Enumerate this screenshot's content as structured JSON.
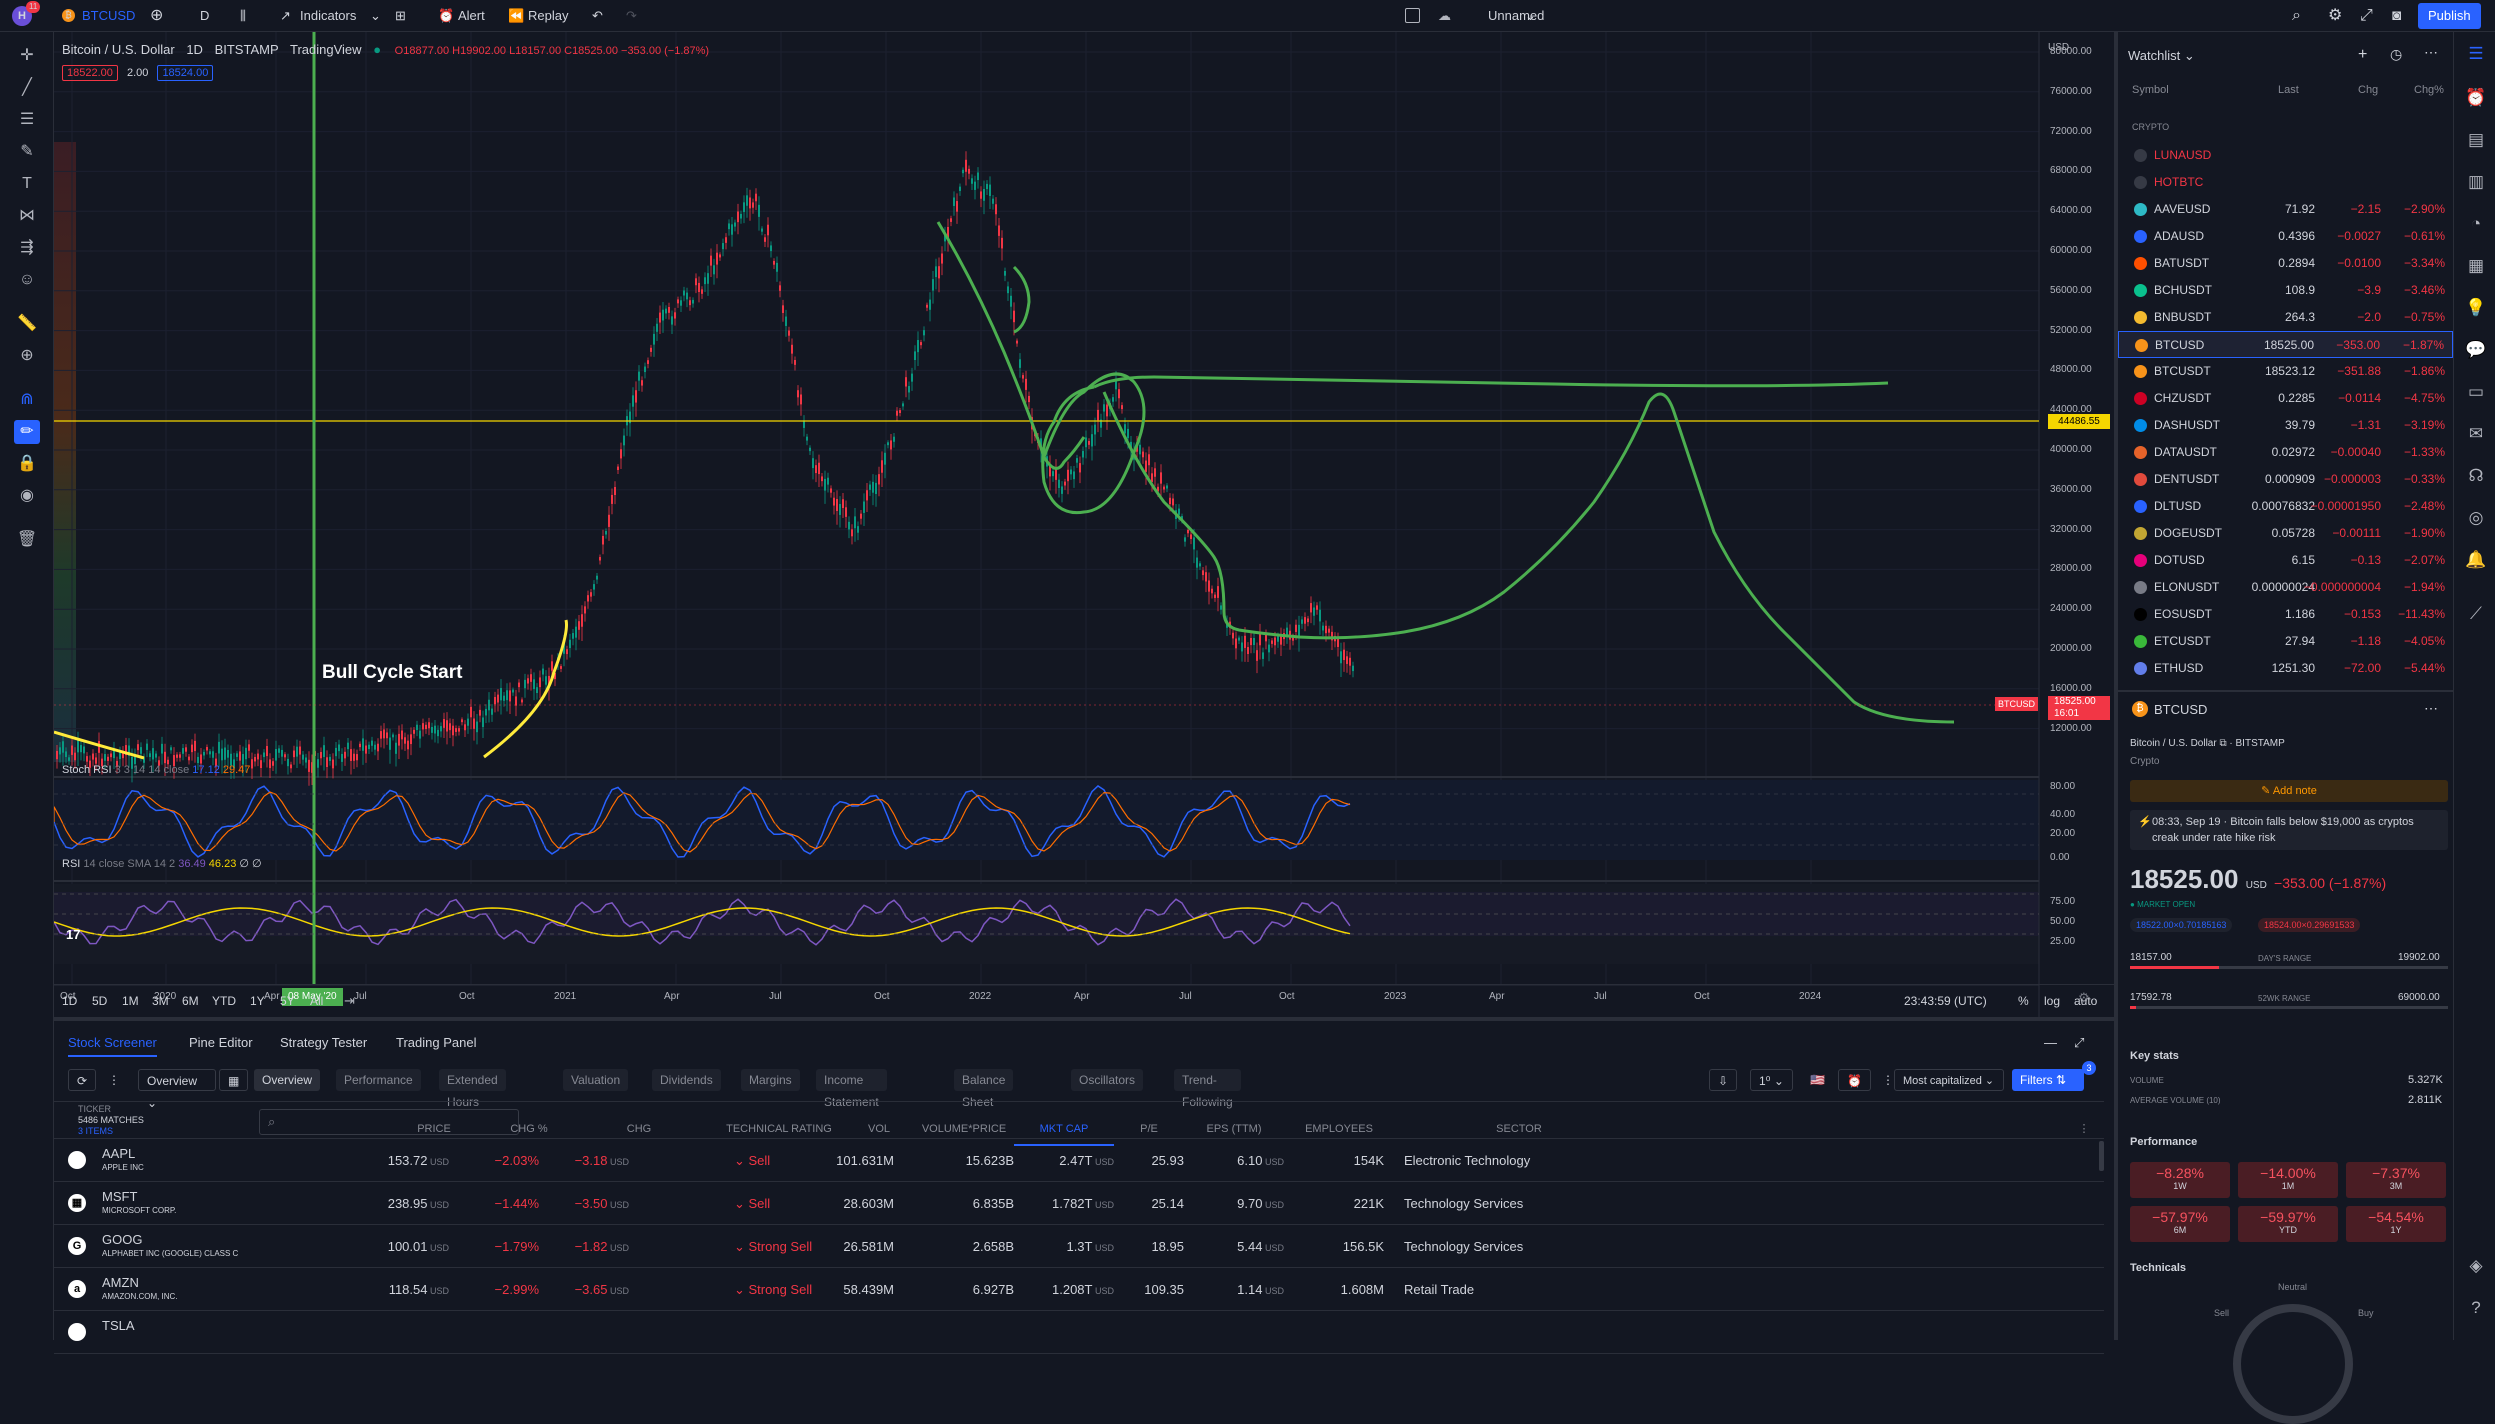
{
  "topbar": {
    "symbol": "BTCUSD",
    "avatar_badge": "11",
    "interval": "D",
    "indicators": "Indicators",
    "alert": "Alert",
    "replay": "Replay",
    "layout_name": "Unnamed",
    "publish": "Publish"
  },
  "legend": {
    "title": "Bitcoin / U.S. Dollar",
    "interval": "1D",
    "exchange": "BITSTAMP",
    "source": "TradingView",
    "o": "O18877.00",
    "h": "H19902.00",
    "l": "L18157.00",
    "c": "C18525.00",
    "change": "−353.00 (−1.87%)",
    "bid": "18522.00",
    "spread": "2.00",
    "ask": "18524.00"
  },
  "annotation": "Bull Cycle Start",
  "price_axis": {
    "currency": "USD",
    "ticks": [
      "80000.00",
      "76000.00",
      "72000.00",
      "68000.00",
      "64000.00",
      "60000.00",
      "56000.00",
      "52000.00",
      "48000.00",
      "44000.00",
      "40000.00",
      "36000.00",
      "32000.00",
      "28000.00",
      "24000.00",
      "20000.00",
      "16000.00",
      "12000.00"
    ],
    "hline_label": "44486.55",
    "last_label": "18525.00",
    "last_time": "16:01",
    "sym_tag": "BTCUSD"
  },
  "stoch": {
    "label": "Stoch RSI",
    "params": "3 3 14 14 close",
    "k": "17.12",
    "d": "29.47",
    "ticks": [
      "80.00",
      "40.00",
      "20.00",
      "0.00"
    ]
  },
  "rsi": {
    "label": "RSI",
    "params": "14 close SMA 14 2",
    "v1": "36.49",
    "v2": "46.23",
    "v3": "∅ ∅",
    "ticks": [
      "75.00",
      "50.00",
      "25.00"
    ]
  },
  "time_axis": {
    "labels": [
      "Oct",
      "2020",
      "Apr",
      "Jul",
      "Oct",
      "2021",
      "Apr",
      "Jul",
      "Oct",
      "2022",
      "Apr",
      "Jul",
      "Oct",
      "2023",
      "Apr",
      "Jul",
      "Oct",
      "2024"
    ],
    "highlight": "08 May '20"
  },
  "range_bar": {
    "ranges": [
      "1D",
      "5D",
      "1M",
      "3M",
      "6M",
      "YTD",
      "1Y",
      "5Y",
      "All"
    ],
    "clock": "23:43:59 (UTC)",
    "pct": "%",
    "log": "log",
    "auto": "auto"
  },
  "bottom_tabs": [
    "Stock Screener",
    "Pine Editor",
    "Strategy Tester",
    "Trading Panel"
  ],
  "screener": {
    "preset": "Overview",
    "chips": [
      "Overview",
      "Performance",
      "Extended Hours",
      "Valuation",
      "Dividends",
      "Margins",
      "Income Statement",
      "Balance Sheet",
      "Oscillators",
      "Trend-Following"
    ],
    "sort": "Most capitalized",
    "filters": "Filters",
    "filter_count": "3",
    "ticker_head": "TICKER",
    "matches": "5486 MATCHES",
    "items": "3 ITEMS",
    "columns": [
      "PRICE",
      "CHG %",
      "CHG",
      "TECHNICAL RATING",
      "VOL",
      "VOLUME*PRICE",
      "MKT CAP",
      "P/E",
      "EPS (TTM)",
      "EMPLOYEES",
      "SECTOR"
    ],
    "rows": [
      {
        "ticker": "AAPL",
        "name": "APPLE INC",
        "price": "153.72",
        "chgp": "−2.03%",
        "chg": "−3.18",
        "rating": "Sell",
        "vol": "101.631M",
        "vp": "15.623B",
        "cap": "2.47T",
        "pe": "25.93",
        "eps": "6.10",
        "emp": "154K",
        "sector": "Electronic Technology",
        "logo": ""
      },
      {
        "ticker": "MSFT",
        "name": "MICROSOFT CORP.",
        "price": "238.95",
        "chgp": "−1.44%",
        "chg": "−3.50",
        "rating": "Sell",
        "vol": "28.603M",
        "vp": "6.835B",
        "cap": "1.782T",
        "pe": "25.14",
        "eps": "9.70",
        "emp": "221K",
        "sector": "Technology Services",
        "logo": "▦"
      },
      {
        "ticker": "GOOG",
        "name": "ALPHABET INC (GOOGLE) CLASS C",
        "price": "100.01",
        "chgp": "−1.79%",
        "chg": "−1.82",
        "rating": "Strong Sell",
        "vol": "26.581M",
        "vp": "2.658B",
        "cap": "1.3T",
        "pe": "18.95",
        "eps": "5.44",
        "emp": "156.5K",
        "sector": "Technology Services",
        "logo": "G"
      },
      {
        "ticker": "AMZN",
        "name": "AMAZON.COM, INC.",
        "price": "118.54",
        "chgp": "−2.99%",
        "chg": "−3.65",
        "rating": "Strong Sell",
        "vol": "58.439M",
        "vp": "6.927B",
        "cap": "1.208T",
        "pe": "109.35",
        "eps": "1.14",
        "emp": "1.608M",
        "sector": "Retail Trade",
        "logo": "a"
      },
      {
        "ticker": "TSLA",
        "name": "",
        "price": "",
        "chgp": "",
        "chg": "",
        "rating": "",
        "vol": "",
        "vp": "",
        "cap": "",
        "pe": "",
        "eps": "",
        "emp": "",
        "sector": "",
        "logo": ""
      }
    ],
    "unit": "USD"
  },
  "watchlist": {
    "title": "Watchlist",
    "col_symbol": "Symbol",
    "col_last": "Last",
    "col_chg": "Chg",
    "col_pct": "Chg%",
    "section": "CRYPTO",
    "rows": [
      {
        "sym": "LUNAUSD",
        "last": "",
        "chg": "",
        "pct": "",
        "color": "#363a45",
        "red": true
      },
      {
        "sym": "HOTBTC",
        "last": "",
        "chg": "",
        "pct": "",
        "color": "#363a45",
        "red": true
      },
      {
        "sym": "AAVEUSD",
        "last": "71.92",
        "chg": "−2.15",
        "pct": "−2.90%",
        "color": "#2ebac6"
      },
      {
        "sym": "ADAUSD",
        "last": "0.4396",
        "chg": "−0.0027",
        "pct": "−0.61%",
        "color": "#2962ff"
      },
      {
        "sym": "BATUSDT",
        "last": "0.2894",
        "chg": "−0.0100",
        "pct": "−3.34%",
        "color": "#ff5000"
      },
      {
        "sym": "BCHUSDT",
        "last": "108.9",
        "chg": "−3.9",
        "pct": "−3.46%",
        "color": "#0ac18e"
      },
      {
        "sym": "BNBUSDT",
        "last": "264.3",
        "chg": "−2.0",
        "pct": "−0.75%",
        "color": "#f3ba2f"
      },
      {
        "sym": "BTCUSD",
        "last": "18525.00",
        "chg": "−353.00",
        "pct": "−1.87%",
        "color": "#f7931a",
        "selected": true
      },
      {
        "sym": "BTCUSDT",
        "last": "18523.12",
        "chg": "−351.88",
        "pct": "−1.86%",
        "color": "#f7931a"
      },
      {
        "sym": "CHZUSDT",
        "last": "0.2285",
        "chg": "−0.0114",
        "pct": "−4.75%",
        "color": "#cd0124"
      },
      {
        "sym": "DASHUSDT",
        "last": "39.79",
        "chg": "−1.31",
        "pct": "−3.19%",
        "color": "#008ce7"
      },
      {
        "sym": "DATAUSDT",
        "last": "0.02972",
        "chg": "−0.00040",
        "pct": "−1.33%",
        "color": "#e6632a"
      },
      {
        "sym": "DENTUSDT",
        "last": "0.000909",
        "chg": "−0.000003",
        "pct": "−0.33%",
        "color": "#e14a3c"
      },
      {
        "sym": "DLTUSD",
        "last": "0.00076832",
        "chg": "−0.00001950",
        "pct": "−2.48%",
        "color": "#2962ff"
      },
      {
        "sym": "DOGEUSDT",
        "last": "0.05728",
        "chg": "−0.00111",
        "pct": "−1.90%",
        "color": "#c2a633"
      },
      {
        "sym": "DOTUSD",
        "last": "6.15",
        "chg": "−0.13",
        "pct": "−2.07%",
        "color": "#e6007a"
      },
      {
        "sym": "ELONUSDT",
        "last": "0.00000024",
        "chg": "−0.000000004",
        "pct": "−1.94%",
        "color": "#787b86"
      },
      {
        "sym": "EOSUSDT",
        "last": "1.186",
        "chg": "−0.153",
        "pct": "−11.43%",
        "color": "#000000"
      },
      {
        "sym": "ETCUSDT",
        "last": "27.94",
        "chg": "−1.18",
        "pct": "−4.05%",
        "color": "#3ab83a"
      },
      {
        "sym": "ETHUSD",
        "last": "1251.30",
        "chg": "−72.00",
        "pct": "−5.44%",
        "color": "#627eea"
      }
    ]
  },
  "details": {
    "symbol": "BTCUSD",
    "full": "Bitcoin / U.S. Dollar",
    "exchange": "BITSTAMP",
    "type": "Crypto",
    "add_note": "Add note",
    "news": "08:33, Sep 19 · Bitcoin falls below $19,000 as cryptos creak under rate hike risk",
    "price_big": "18525.00",
    "price_unit": "USD",
    "price_change": "−353.00 (−1.87%)",
    "market": "MARKET OPEN",
    "bid_chip": "18522.00×0.70185163",
    "ask_chip": "18524.00×0.29691533",
    "day_low": "18157.00",
    "day_label": "DAY'S RANGE",
    "day_high": "19902.00",
    "wk_low": "17592.78",
    "wk_label": "52WK RANGE",
    "wk_high": "69000.00",
    "key_stats": "Key stats",
    "volume_label": "VOLUME",
    "volume": "5.327K",
    "avgvol_label": "AVERAGE VOLUME (10)",
    "avgvol": "2.811K",
    "performance": "Performance",
    "perf": [
      {
        "v": "−8.28%",
        "p": "1W"
      },
      {
        "v": "−14.00%",
        "p": "1M"
      },
      {
        "v": "−7.37%",
        "p": "3M"
      },
      {
        "v": "−57.97%",
        "p": "6M"
      },
      {
        "v": "−59.97%",
        "p": "YTD"
      },
      {
        "v": "−54.54%",
        "p": "1Y"
      }
    ],
    "technicals": "Technicals",
    "neutral": "Neutral",
    "sell": "Sell",
    "buy": "Buy"
  },
  "colors": {
    "accent": "#2962ff",
    "up": "#089981",
    "down": "#f23645",
    "drawing": "#4caf50",
    "bull_line": "#ffeb3b",
    "publish": "#2962ff"
  }
}
